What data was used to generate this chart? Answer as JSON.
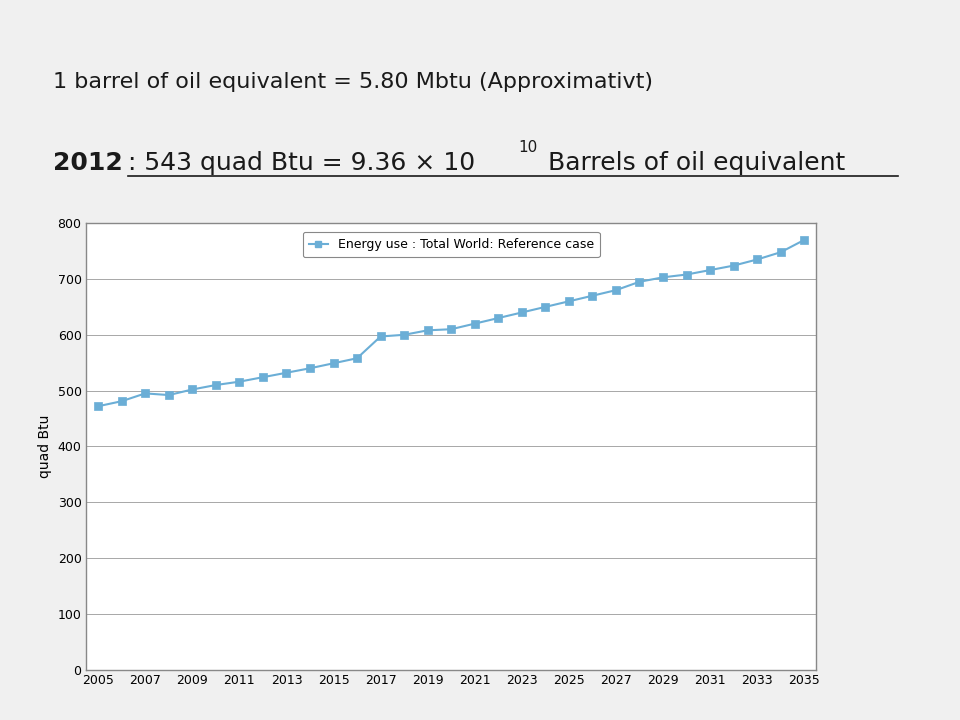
{
  "title_line1": "1 barrel of oil equivalent = 5.80 Mbtu (Approximativt)",
  "legend_label": "Energy use : Total World: Reference case",
  "ylabel": "quad Btu",
  "years": [
    2005,
    2006,
    2007,
    2008,
    2009,
    2010,
    2011,
    2012,
    2013,
    2014,
    2015,
    2016,
    2017,
    2018,
    2019,
    2020,
    2021,
    2022,
    2023,
    2024,
    2025,
    2026,
    2027,
    2028,
    2029,
    2030,
    2031,
    2032,
    2033,
    2034,
    2035
  ],
  "values": [
    472,
    481,
    495,
    492,
    502,
    510,
    516,
    524,
    532,
    540,
    549,
    558,
    597,
    600,
    608,
    610,
    620,
    630,
    640,
    650,
    660,
    670,
    680,
    695,
    703,
    708,
    716,
    724,
    735,
    748,
    770
  ],
  "line_color": "#6baed6",
  "marker_color": "#6baed6",
  "marker": "s",
  "ylim": [
    0,
    800
  ],
  "yticks": [
    0,
    100,
    200,
    300,
    400,
    500,
    600,
    700,
    800
  ],
  "fig_bg": "#e0dede",
  "chart_bg": "#ffffff",
  "grid_color": "#999999",
  "border_color": "#888888",
  "text_color": "#1a1a1a",
  "slide_bg": "#f0f0f0"
}
